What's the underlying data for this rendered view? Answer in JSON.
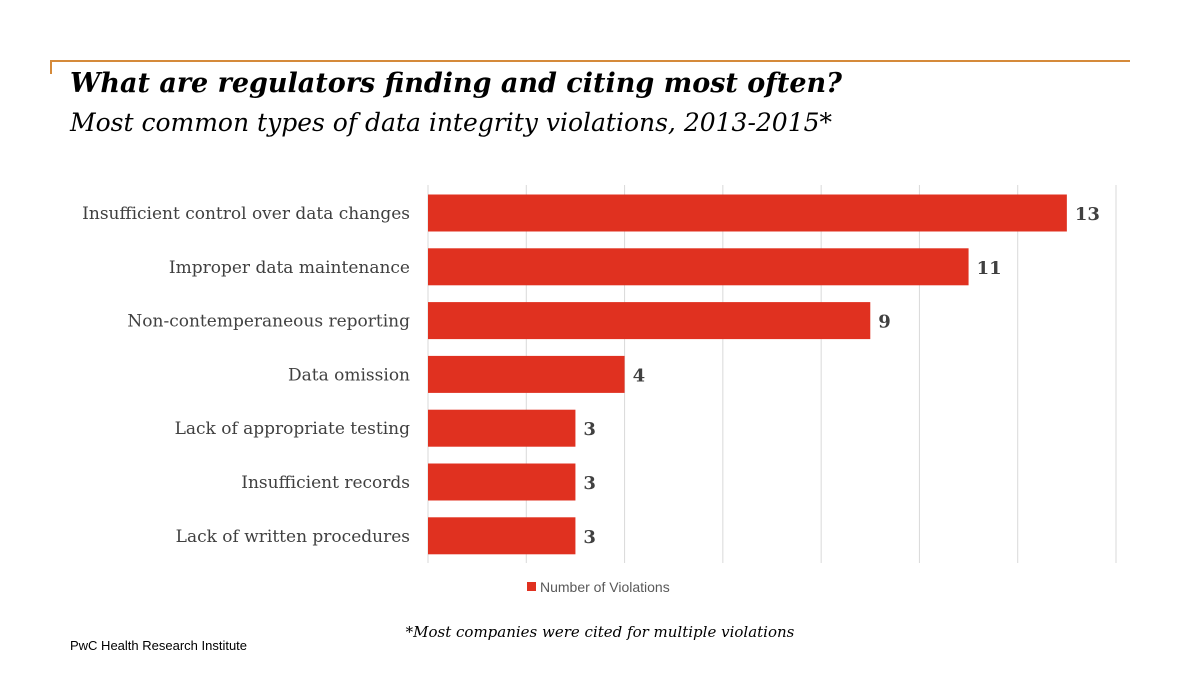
{
  "title": "What are regulators finding and citing most often?",
  "subtitle": "Most common types of data integrity violations, 2013-2015*",
  "footnote": "*Most companies were cited for multiple violations",
  "source": "PwC Health Research Institute",
  "colors": {
    "bar": "#e03120",
    "accent_line": "#d58a3a",
    "grid": "#d9d9d9"
  },
  "chart_data": {
    "type": "bar",
    "orientation": "horizontal",
    "categories": [
      "Insufficient control over data changes",
      "Improper data maintenance",
      "Non-contemperaneous reporting",
      "Data omission",
      "Lack of appropriate testing",
      "Insufficient records",
      "Lack of written procedures"
    ],
    "series": [
      {
        "name": "Number of Violations",
        "values": [
          13,
          11,
          9,
          4,
          3,
          3,
          3
        ]
      }
    ],
    "xlim": [
      0,
      14
    ],
    "grid": true,
    "data_labels": true,
    "legend": "bottom"
  }
}
